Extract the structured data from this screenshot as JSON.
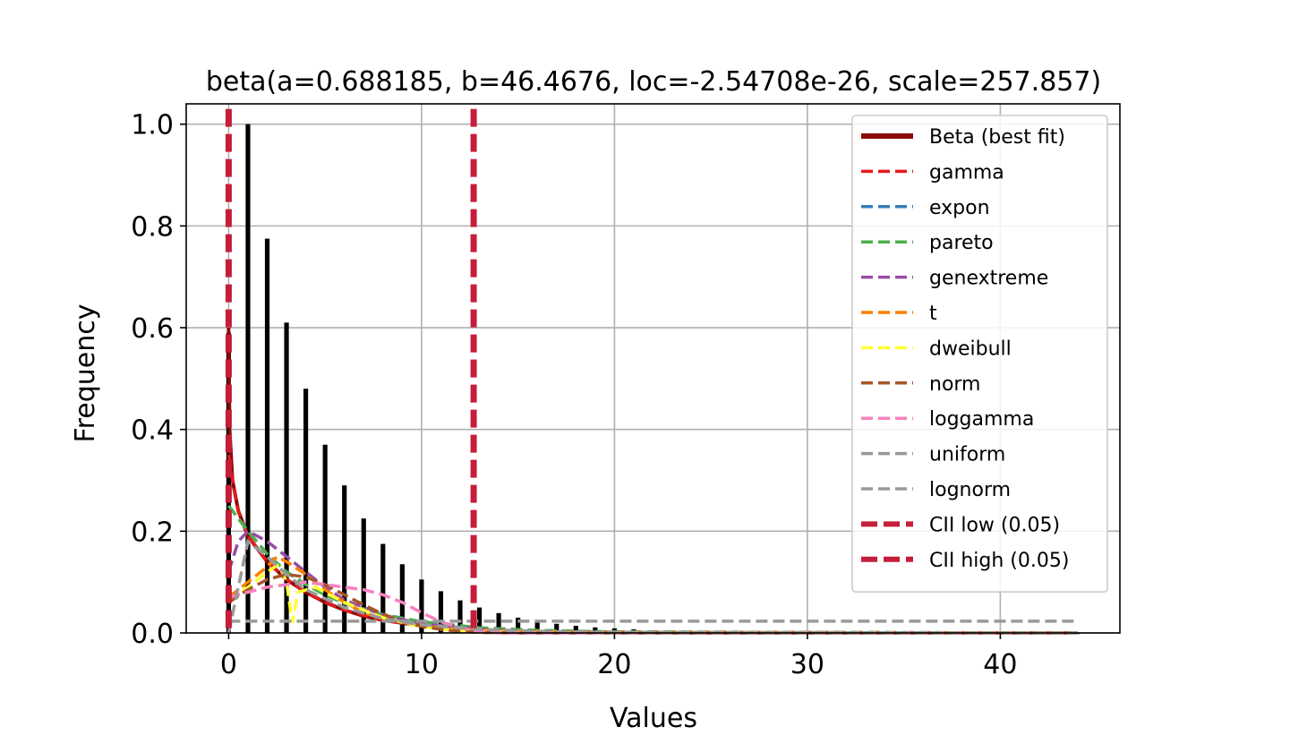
{
  "chart_data": {
    "type": "line",
    "title": "beta(a=0.688185, b=46.4676, loc=-2.54708e-26, scale=257.857)",
    "xlabel": "Values",
    "ylabel": "Frequency",
    "xlim": [
      -2.2,
      46.2
    ],
    "ylim": [
      0,
      1.04
    ],
    "xticks": [
      0,
      10,
      20,
      30,
      40
    ],
    "xtick_labels": [
      "0",
      "10",
      "20",
      "30",
      "40"
    ],
    "yticks": [
      0,
      0.2,
      0.4,
      0.6,
      0.8,
      1.0
    ],
    "ytick_labels": [
      "0.0",
      "0.2",
      "0.4",
      "0.6",
      "0.8",
      "1.0"
    ],
    "grid": true,
    "legend_position": "upper right",
    "histogram": {
      "x": [
        0,
        1,
        2,
        3,
        4,
        5,
        6,
        7,
        8,
        9,
        10,
        11,
        12,
        13,
        14,
        15,
        16,
        17,
        18,
        19,
        20,
        21,
        22,
        23,
        24,
        25,
        26,
        27,
        28,
        29,
        30,
        31,
        32,
        33,
        34,
        35,
        36,
        37,
        38,
        39,
        40,
        41,
        42,
        43,
        44
      ],
      "values": [
        0.59,
        1.0,
        0.775,
        0.61,
        0.48,
        0.37,
        0.29,
        0.225,
        0.175,
        0.135,
        0.105,
        0.082,
        0.064,
        0.05,
        0.039,
        0.03,
        0.023,
        0.018,
        0.014,
        0.011,
        0.009,
        0.007,
        0.005,
        0.004,
        0.003,
        0.003,
        0.002,
        0.002,
        0.001,
        0.001,
        0.001,
        0.001,
        0.001,
        0.001,
        0,
        0,
        0,
        0,
        0,
        0,
        0,
        0,
        0,
        0,
        0
      ]
    },
    "series": [
      {
        "name": "Beta (best fit)",
        "color": "#8b0a0a",
        "style": "solid",
        "points": [
          [
            0,
            0.6
          ],
          [
            0.05,
            0.4
          ],
          [
            0.2,
            0.3
          ],
          [
            0.5,
            0.24
          ],
          [
            1,
            0.19
          ],
          [
            2,
            0.14
          ],
          [
            3,
            0.105
          ],
          [
            4,
            0.08
          ],
          [
            5,
            0.06
          ],
          [
            6,
            0.045
          ],
          [
            7,
            0.033
          ],
          [
            8,
            0.025
          ],
          [
            10,
            0.014
          ],
          [
            12,
            0.008
          ],
          [
            14,
            0.004
          ],
          [
            17,
            0.002
          ],
          [
            20,
            0.001
          ],
          [
            25,
            0
          ],
          [
            44,
            0
          ]
        ]
      },
      {
        "name": "gamma",
        "color": "#e41a1c",
        "style": "dashed",
        "points": [
          [
            0,
            0.35
          ],
          [
            0.2,
            0.3
          ],
          [
            0.5,
            0.24
          ],
          [
            1,
            0.19
          ],
          [
            2,
            0.14
          ],
          [
            3,
            0.105
          ],
          [
            4,
            0.08
          ],
          [
            5,
            0.06
          ],
          [
            6,
            0.045
          ],
          [
            8,
            0.025
          ],
          [
            10,
            0.014
          ],
          [
            13,
            0.006
          ],
          [
            16,
            0.002
          ],
          [
            20,
            0.001
          ],
          [
            44,
            0
          ]
        ]
      },
      {
        "name": "expon",
        "color": "#377eb8",
        "style": "dashed",
        "points": [
          [
            0,
            0.25
          ],
          [
            1,
            0.2
          ],
          [
            2,
            0.155
          ],
          [
            3,
            0.12
          ],
          [
            4,
            0.095
          ],
          [
            5,
            0.075
          ],
          [
            6,
            0.058
          ],
          [
            8,
            0.036
          ],
          [
            10,
            0.022
          ],
          [
            13,
            0.01
          ],
          [
            16,
            0.005
          ],
          [
            20,
            0.002
          ],
          [
            44,
            0
          ]
        ]
      },
      {
        "name": "pareto",
        "color": "#4daf4a",
        "style": "dashed",
        "points": [
          [
            0,
            0.25
          ],
          [
            1,
            0.2
          ],
          [
            2,
            0.155
          ],
          [
            3,
            0.12
          ],
          [
            4,
            0.095
          ],
          [
            5,
            0.075
          ],
          [
            6,
            0.058
          ],
          [
            8,
            0.036
          ],
          [
            10,
            0.022
          ],
          [
            13,
            0.01
          ],
          [
            16,
            0.005
          ],
          [
            20,
            0.002
          ],
          [
            44,
            0
          ]
        ]
      },
      {
        "name": "genextreme",
        "color": "#984ea3",
        "style": "dashed",
        "points": [
          [
            0,
            0.12
          ],
          [
            0.5,
            0.18
          ],
          [
            1,
            0.2
          ],
          [
            2,
            0.18
          ],
          [
            3,
            0.15
          ],
          [
            4,
            0.12
          ],
          [
            5,
            0.09
          ],
          [
            6,
            0.065
          ],
          [
            8,
            0.035
          ],
          [
            10,
            0.018
          ],
          [
            13,
            0.007
          ],
          [
            16,
            0.002
          ],
          [
            20,
            0
          ],
          [
            44,
            0
          ]
        ]
      },
      {
        "name": "t",
        "color": "#ff7f00",
        "style": "dashed",
        "points": [
          [
            0,
            0.07
          ],
          [
            1,
            0.1
          ],
          [
            2,
            0.13
          ],
          [
            2.5,
            0.15
          ],
          [
            3,
            0.14
          ],
          [
            4,
            0.115
          ],
          [
            5,
            0.085
          ],
          [
            6,
            0.06
          ],
          [
            7,
            0.04
          ],
          [
            8,
            0.028
          ],
          [
            10,
            0.014
          ],
          [
            12,
            0.007
          ],
          [
            15,
            0.003
          ],
          [
            20,
            0.001
          ],
          [
            44,
            0
          ]
        ]
      },
      {
        "name": "dweibull",
        "color": "#ffff33",
        "style": "dashed",
        "points": [
          [
            0,
            0.06
          ],
          [
            1,
            0.09
          ],
          [
            2,
            0.12
          ],
          [
            2.6,
            0.135
          ],
          [
            3,
            0.1
          ],
          [
            3.3,
            0.02
          ],
          [
            3.6,
            0.08
          ],
          [
            4.5,
            0.09
          ],
          [
            6,
            0.06
          ],
          [
            8,
            0.03
          ],
          [
            10,
            0.012
          ],
          [
            12,
            0.004
          ],
          [
            15,
            0.001
          ],
          [
            20,
            0
          ],
          [
            44,
            0
          ]
        ]
      },
      {
        "name": "norm",
        "color": "#a65628",
        "style": "dashed",
        "points": [
          [
            0,
            0.06
          ],
          [
            1,
            0.085
          ],
          [
            2,
            0.105
          ],
          [
            3,
            0.115
          ],
          [
            4,
            0.11
          ],
          [
            5,
            0.095
          ],
          [
            6,
            0.075
          ],
          [
            7,
            0.055
          ],
          [
            8,
            0.037
          ],
          [
            9,
            0.023
          ],
          [
            10,
            0.013
          ],
          [
            11,
            0.007
          ],
          [
            12,
            0.003
          ],
          [
            13,
            0.001
          ],
          [
            15,
            0
          ],
          [
            44,
            0
          ]
        ]
      },
      {
        "name": "loggamma",
        "color": "#f781bf",
        "style": "dashed",
        "points": [
          [
            0,
            0.07
          ],
          [
            1,
            0.08
          ],
          [
            2,
            0.09
          ],
          [
            3,
            0.095
          ],
          [
            4,
            0.1
          ],
          [
            5,
            0.095
          ],
          [
            6,
            0.09
          ],
          [
            7,
            0.085
          ],
          [
            8,
            0.075
          ],
          [
            9,
            0.06
          ],
          [
            10,
            0.04
          ],
          [
            11,
            0.022
          ],
          [
            12,
            0.01
          ],
          [
            13,
            0.003
          ],
          [
            14,
            0
          ],
          [
            44,
            0
          ]
        ]
      },
      {
        "name": "uniform",
        "color": "#999999",
        "style": "dashed",
        "points": [
          [
            0,
            0.023
          ],
          [
            44,
            0.023
          ]
        ]
      },
      {
        "name": "lognorm",
        "color": "#999999",
        "style": "dashed",
        "points": [
          [
            0,
            0.0
          ],
          [
            1,
            0.18
          ],
          [
            2,
            0.15
          ],
          [
            3,
            0.115
          ],
          [
            4,
            0.085
          ],
          [
            6,
            0.05
          ],
          [
            8,
            0.028
          ],
          [
            10,
            0.016
          ],
          [
            13,
            0.007
          ],
          [
            16,
            0.003
          ],
          [
            20,
            0.001
          ],
          [
            44,
            0
          ]
        ]
      }
    ],
    "vlines": [
      {
        "name": "CII low (0.05)",
        "x": 0,
        "color": "#c41e3a"
      },
      {
        "name": "CII high (0.05)",
        "x": 12.7,
        "color": "#c41e3a"
      }
    ]
  }
}
